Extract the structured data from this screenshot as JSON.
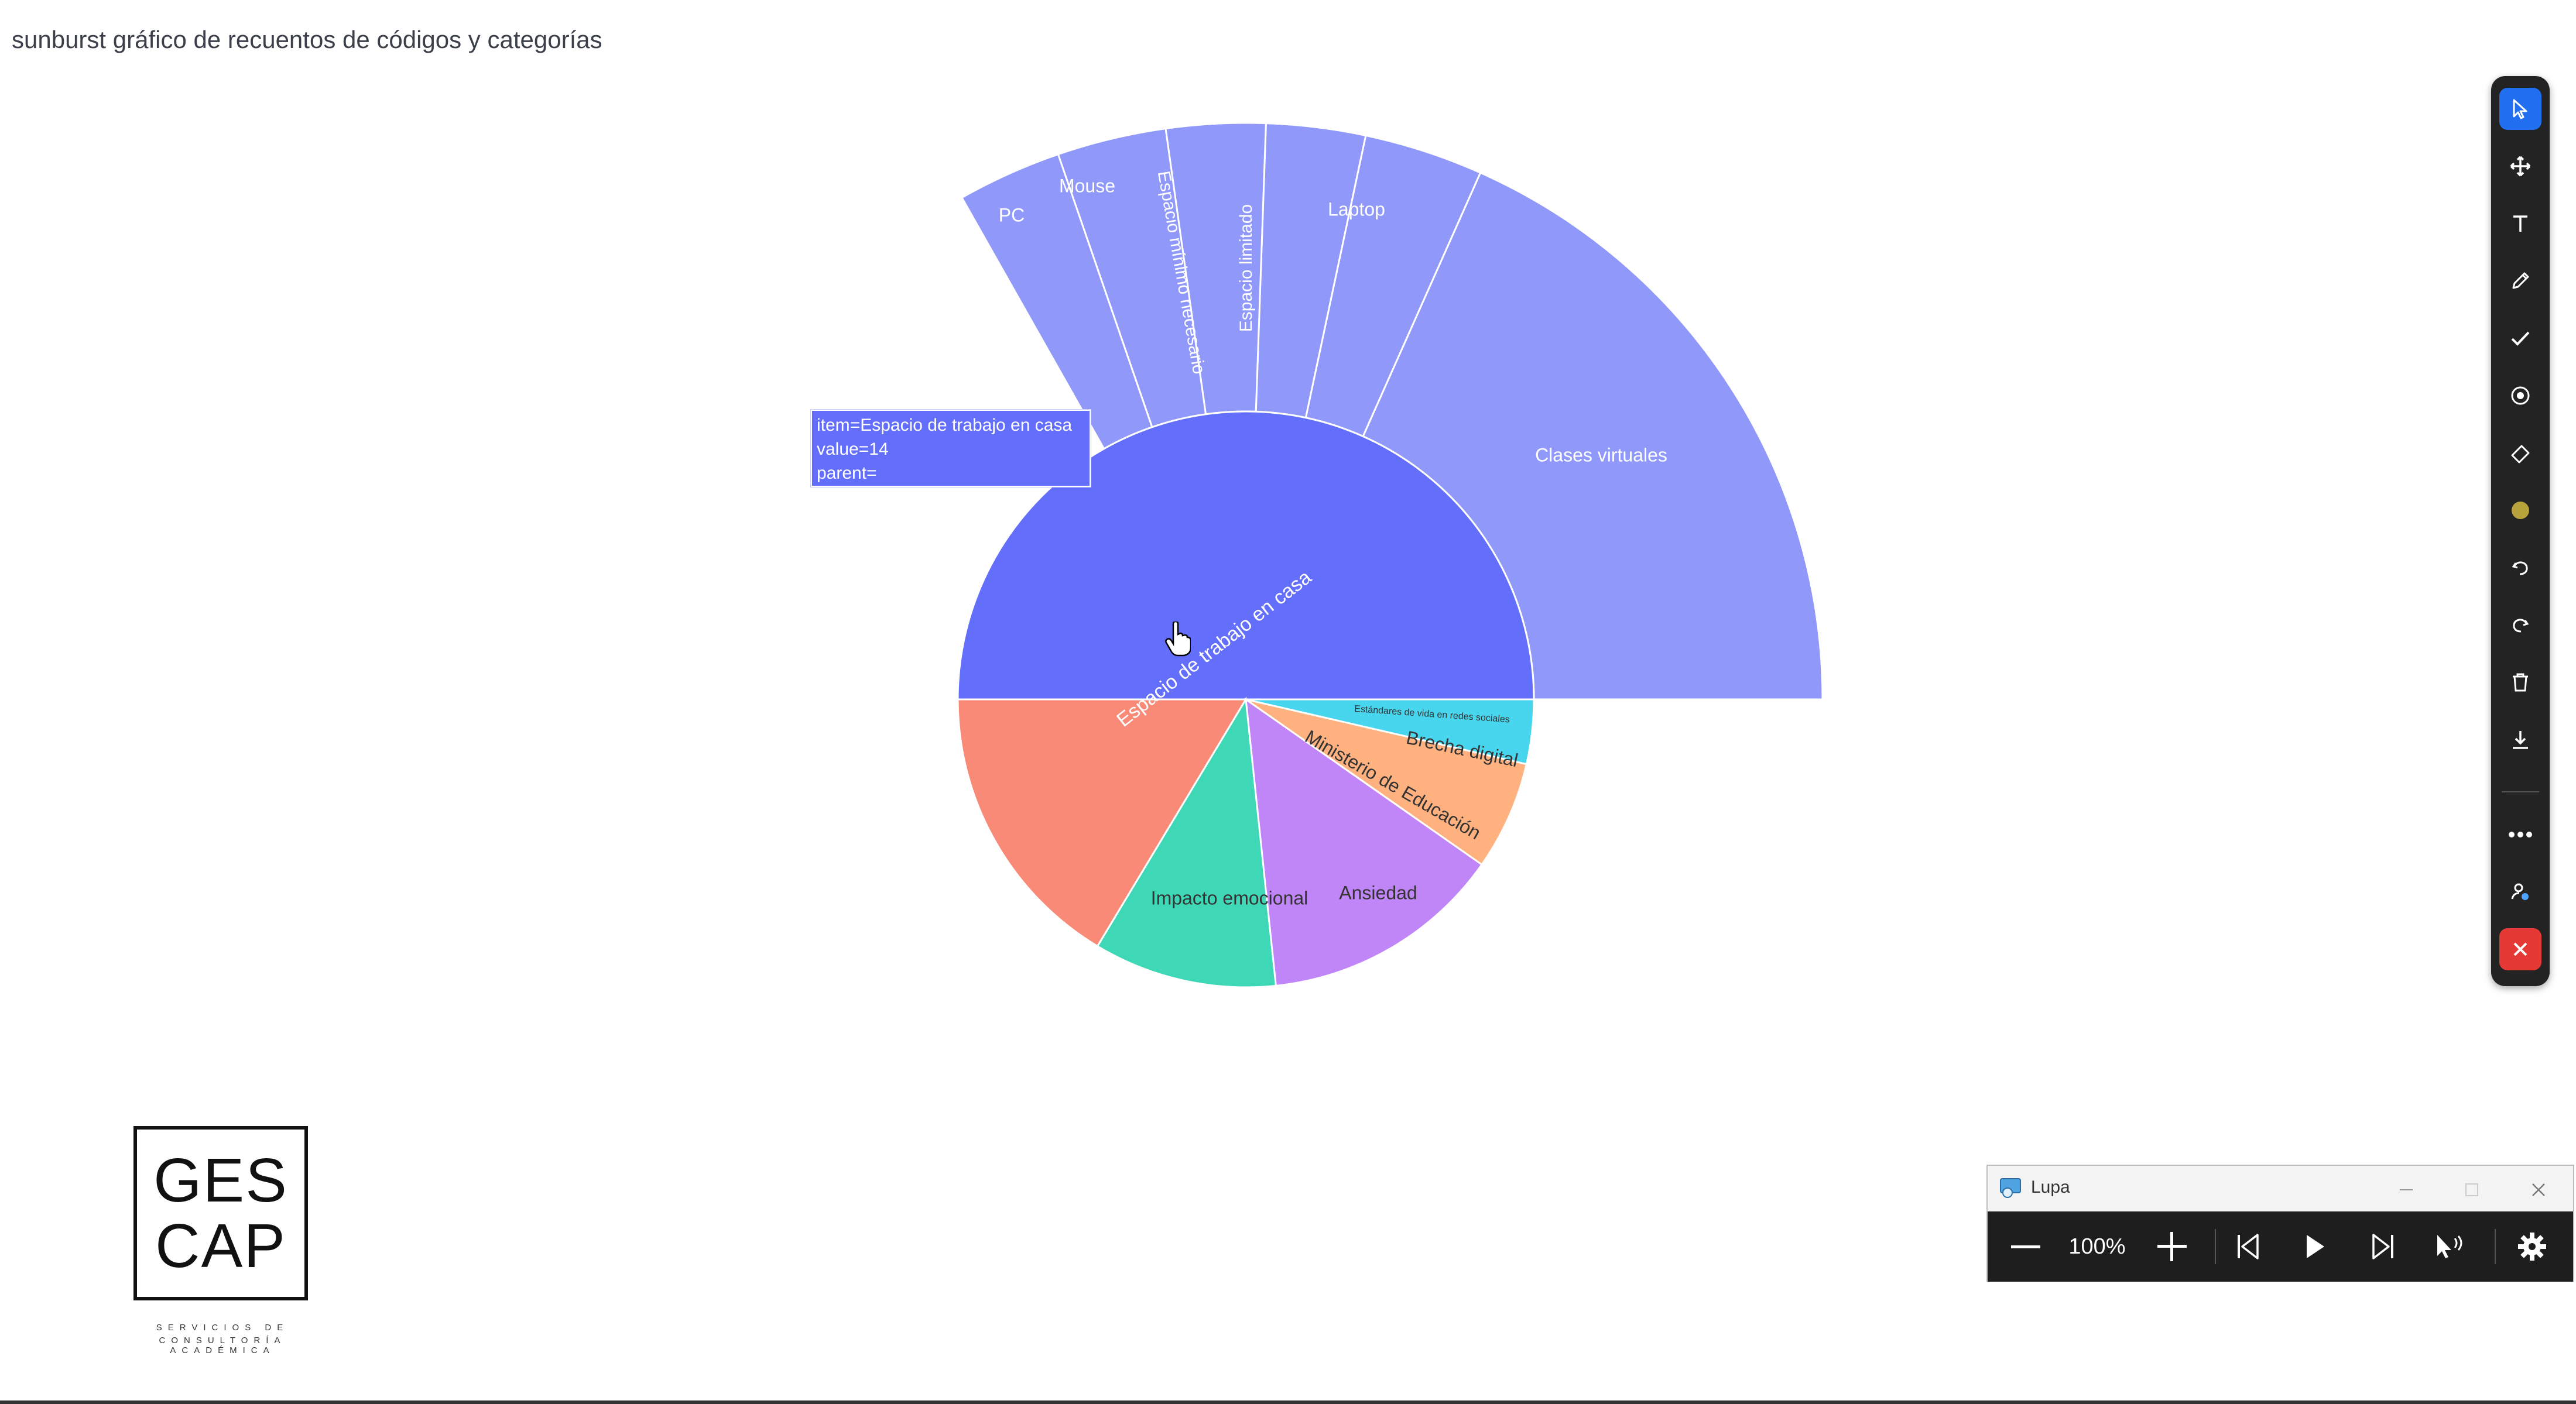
{
  "page": {
    "title": "sunburst gráfico de recuentos de códigos y categorías"
  },
  "chart_data": {
    "type": "sunburst",
    "title": "sunburst gráfico de recuentos de códigos y categorías",
    "nodes": [
      {
        "label": "Espacio de trabajo en casa",
        "parent": "",
        "value": 14,
        "color": "#636efa"
      },
      {
        "label": "Impacto emocional",
        "parent": "",
        "value": 2.8,
        "color": "#f98a78"
      },
      {
        "label": "Ansiedad",
        "parent": "",
        "value": 1.4,
        "color": "#3fd8b6"
      },
      {
        "label": "Ministerio de Educación",
        "parent": "",
        "value": 1.5,
        "color": "#c085f7"
      },
      {
        "label": "Brecha digital",
        "parent": "",
        "value": 0.45,
        "color": "#ffb180"
      },
      {
        "label": "Estándares de vida en redes sociales",
        "parent": "",
        "value": 0.35,
        "color": "#48d5ee"
      },
      {
        "label": "Clases virtuales",
        "parent": "Espacio de trabajo en casa",
        "value": 5.4,
        "color": "#9098f9"
      },
      {
        "label": "Laptop",
        "parent": "Espacio de trabajo en casa",
        "value": 1.8,
        "color": "#9098f9"
      },
      {
        "label": "Espacio limitado",
        "parent": "Espacio de trabajo en casa",
        "value": 0.8,
        "color": "#9098f9"
      },
      {
        "label": "Espacio mínimo necesario",
        "parent": "Espacio de trabajo en casa",
        "value": 0.8,
        "color": "#9098f9"
      },
      {
        "label": "Mouse",
        "parent": "Espacio de trabajo en casa",
        "value": 0.8,
        "color": "#9098f9"
      },
      {
        "label": "PC",
        "parent": "Espacio de trabajo en casa",
        "value": 0.8,
        "color": "#9098f9"
      }
    ],
    "hover": {
      "line1": "item=Espacio de trabajo en casa",
      "line2": "value=14",
      "line3": "parent="
    }
  },
  "toolbar": {
    "items": [
      "select-icon",
      "move-icon",
      "text-icon",
      "pen-icon",
      "check-icon",
      "target-icon",
      "eraser-icon",
      "color-icon",
      "undo-icon",
      "redo-icon",
      "trash-icon",
      "download-icon",
      "more-icon",
      "user-icon",
      "close-icon"
    ],
    "accent": "#1f6ff0",
    "close_color": "#e53935",
    "color_swatch": "#b8a23c"
  },
  "logo": {
    "line1": "GES",
    "line2": "CAP",
    "sub1": "SERVICIOS DE",
    "sub2": "CONSULTORÍA ACADÉMICA"
  },
  "lupa": {
    "title": "Lupa",
    "zoom": "100%"
  }
}
